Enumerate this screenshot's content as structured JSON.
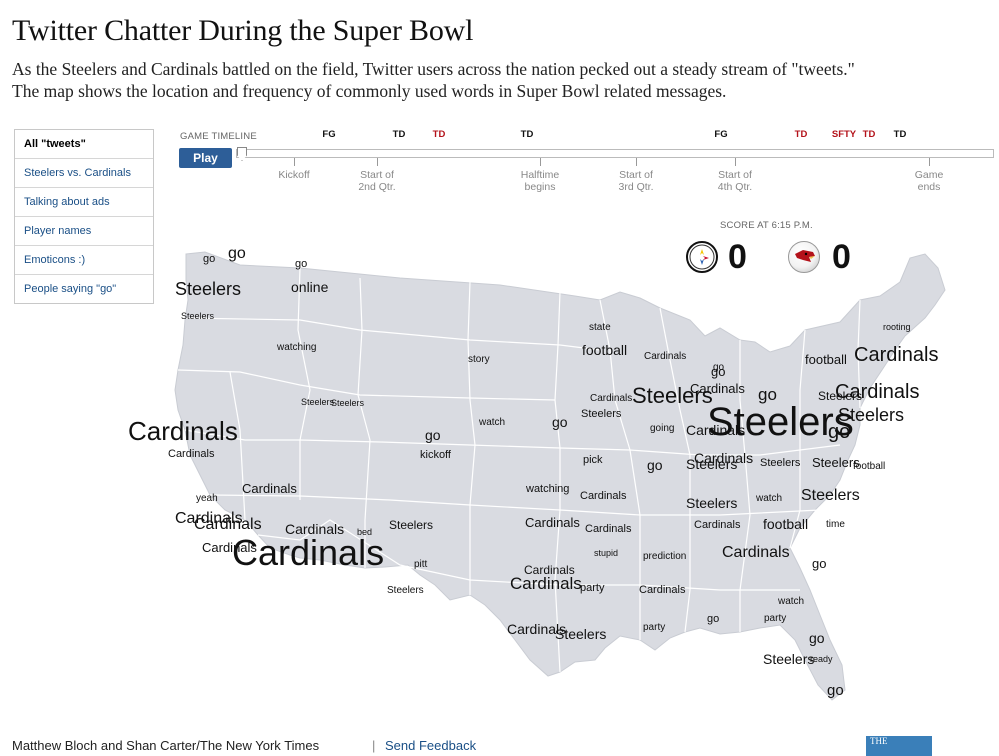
{
  "title": "Twitter Chatter During the Super Bowl",
  "subtitle_line1": "As the Steelers and Cardinals battled on the field, Twitter users across the nation pecked out a steady stream of \"tweets.\"",
  "subtitle_line2": "The map shows the location and frequency of commonly used words in Super Bowl related messages.",
  "menu": [
    {
      "label": "All \"tweets\"",
      "active": true
    },
    {
      "label": "Steelers vs. Cardinals"
    },
    {
      "label": "Talking about ads"
    },
    {
      "label": "Player names"
    },
    {
      "label": "Emoticons :)"
    },
    {
      "label": "People saying \"go\""
    }
  ],
  "timeline": {
    "label": "GAME TIMELINE",
    "play_label": "Play",
    "events": [
      {
        "label": "FG",
        "red": false
      },
      {
        "label": "TD",
        "red": false
      },
      {
        "label": "TD",
        "red": true
      },
      {
        "label": "TD",
        "red": false
      },
      {
        "label": "FG",
        "red": false
      },
      {
        "label": "TD",
        "red": true
      },
      {
        "label": "SFTY",
        "red": true
      },
      {
        "label": "TD",
        "red": true
      },
      {
        "label": "TD",
        "red": false
      }
    ],
    "milestones": [
      {
        "label": "Kickoff"
      },
      {
        "label": "Start of\n2nd Qtr."
      },
      {
        "label": "Halftime\nbegins"
      },
      {
        "label": "Start of\n3rd Qtr."
      },
      {
        "label": "Start of\n4th Qtr."
      },
      {
        "label": "Game\nends"
      }
    ]
  },
  "score": {
    "label": "SCORE AT 6:15 P.M.",
    "steelers": "0",
    "cardinals": "0",
    "steelers_logo_icon": "steelers-logo-icon",
    "cardinals_logo_icon": "cardinals-logo-icon"
  },
  "map_colors": {
    "land": "#d9dbe1",
    "borders": "#ffffff",
    "text": "#111111"
  },
  "words": [
    {
      "text": "go",
      "size": 11
    },
    {
      "text": "go",
      "size": 16
    },
    {
      "text": "go",
      "size": 11
    },
    {
      "text": "Steelers",
      "size": 18
    },
    {
      "text": "online",
      "size": 14
    },
    {
      "text": "Steelers",
      "size": 9
    },
    {
      "text": "watching",
      "size": 10
    },
    {
      "text": "Steelers",
      "size": 9
    },
    {
      "text": "Steelers",
      "size": 9
    },
    {
      "text": "Cardinals",
      "size": 26
    },
    {
      "text": "Cardinals",
      "size": 11
    },
    {
      "text": "story",
      "size": 10
    },
    {
      "text": "go",
      "size": 14
    },
    {
      "text": "kickoff",
      "size": 11
    },
    {
      "text": "watch",
      "size": 10
    },
    {
      "text": "yeah",
      "size": 10
    },
    {
      "text": "Cardinals",
      "size": 13
    },
    {
      "text": "Cardinals",
      "size": 16
    },
    {
      "text": "Cardinals",
      "size": 16
    },
    {
      "text": "Cardinals",
      "size": 13
    },
    {
      "text": "bed",
      "size": 9
    },
    {
      "text": "Steelers",
      "size": 12
    },
    {
      "text": "Cardinals",
      "size": 14
    },
    {
      "text": "Cardinals",
      "size": 36
    },
    {
      "text": "pitt",
      "size": 10
    },
    {
      "text": "Steelers",
      "size": 10
    },
    {
      "text": "state",
      "size": 10
    },
    {
      "text": "football",
      "size": 14
    },
    {
      "text": "Cardinals",
      "size": 10
    },
    {
      "text": "Cardinals",
      "size": 10
    },
    {
      "text": "Steelers",
      "size": 11
    },
    {
      "text": "Steelers",
      "size": 22
    },
    {
      "text": "go",
      "size": 14
    },
    {
      "text": "going",
      "size": 10
    },
    {
      "text": "pick",
      "size": 11
    },
    {
      "text": "go",
      "size": 14
    },
    {
      "text": "watching",
      "size": 11
    },
    {
      "text": "Cardinals",
      "size": 11
    },
    {
      "text": "Cardinals",
      "size": 13
    },
    {
      "text": "stupid",
      "size": 9
    },
    {
      "text": "Cardinals",
      "size": 12
    },
    {
      "text": "Cardinals",
      "size": 17
    },
    {
      "text": "party",
      "size": 11
    },
    {
      "text": "Cardinals",
      "size": 14
    },
    {
      "text": "Cardinals",
      "size": 11
    },
    {
      "text": "prediction",
      "size": 10
    },
    {
      "text": "Cardinals",
      "size": 11
    },
    {
      "text": "Steelers",
      "size": 14
    },
    {
      "text": "party",
      "size": 10
    },
    {
      "text": "go",
      "size": 11
    },
    {
      "text": "go",
      "size": 10
    },
    {
      "text": "Cardinals",
      "size": 13
    },
    {
      "text": "Steelers",
      "size": 40
    },
    {
      "text": "Cardinals",
      "size": 14
    },
    {
      "text": "go",
      "size": 17
    },
    {
      "text": "Cardinals",
      "size": 14
    },
    {
      "text": "Steelers",
      "size": 11
    },
    {
      "text": "Steelers",
      "size": 14
    },
    {
      "text": "watch",
      "size": 10
    },
    {
      "text": "football",
      "size": 14
    },
    {
      "text": "Cardinals",
      "size": 16
    },
    {
      "text": "Cardinals",
      "size": 11
    },
    {
      "text": "Steelers",
      "size": 16
    },
    {
      "text": "go",
      "size": 13
    },
    {
      "text": "watch",
      "size": 10
    },
    {
      "text": "party",
      "size": 10
    },
    {
      "text": "go",
      "size": 14
    },
    {
      "text": "Steelers",
      "size": 14
    },
    {
      "text": "ready",
      "size": 9
    },
    {
      "text": "go",
      "size": 15
    },
    {
      "text": "rooting",
      "size": 9
    },
    {
      "text": "football",
      "size": 13
    },
    {
      "text": "Cardinals",
      "size": 20
    },
    {
      "text": "Cardinals",
      "size": 20
    },
    {
      "text": "Steelers",
      "size": 12
    },
    {
      "text": "Steelers",
      "size": 18
    },
    {
      "text": "go",
      "size": 20
    },
    {
      "text": "Steelers",
      "size": 13
    },
    {
      "text": "Steelers",
      "size": 14
    },
    {
      "text": "football",
      "size": 10
    },
    {
      "text": "time",
      "size": 10
    },
    {
      "text": "go",
      "size": 13
    }
  ],
  "credit": "Matthew Bloch and Shan Carter/The New York Times",
  "separator": "|",
  "feedback_label": "Send Feedback",
  "ad_label": "THE"
}
